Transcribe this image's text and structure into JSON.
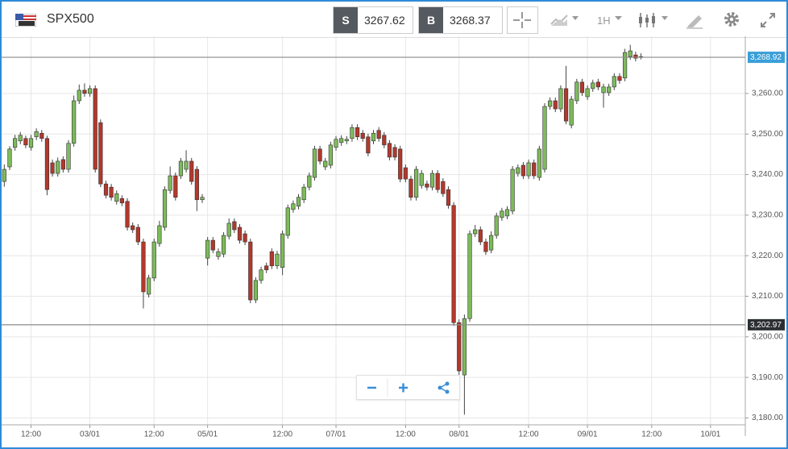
{
  "header": {
    "symbol": "SPX500",
    "sell": {
      "label": "S",
      "price": 3267.62
    },
    "buy": {
      "label": "B",
      "price": 3268.37
    },
    "timeframe": "1H"
  },
  "chart_data": {
    "type": "candlestick",
    "categories": [
      null,
      null,
      null,
      null,
      null,
      "12:00",
      null,
      null,
      null,
      null,
      null,
      null,
      null,
      null,
      null,
      null,
      "03/01",
      null,
      null,
      null,
      null,
      null,
      null,
      null,
      null,
      null,
      null,
      null,
      "12:00",
      null,
      null,
      null,
      null,
      null,
      null,
      null,
      null,
      null,
      "05/01",
      null,
      null,
      null,
      null,
      null,
      null,
      null,
      null,
      null,
      null,
      null,
      null,
      null,
      "12:00",
      null,
      null,
      null,
      null,
      null,
      null,
      null,
      null,
      null,
      "07/01",
      null,
      null,
      null,
      null,
      null,
      null,
      null,
      null,
      null,
      null,
      null,
      null,
      "12:00",
      null,
      null,
      null,
      null,
      null,
      null,
      null,
      null,
      null,
      "08/01",
      null,
      null,
      null,
      null,
      null,
      null,
      null,
      null,
      null,
      null,
      null,
      null,
      "12:00",
      null,
      null,
      null,
      null,
      null,
      null,
      null,
      null,
      null,
      null,
      "09/01",
      null,
      null,
      null,
      null,
      null,
      null,
      null,
      null,
      null,
      null,
      null,
      "12:00",
      null,
      null,
      null,
      null,
      null,
      null,
      null,
      null,
      null,
      null,
      "10/01",
      null,
      null,
      null,
      null,
      null,
      null
    ],
    "open": [
      3238.3,
      3241.9,
      3246.7,
      3248.3,
      3248.9,
      3246.7,
      3249.3,
      3250.2,
      3248.9,
      3242.9,
      3240.3,
      3243.7,
      3241.3,
      3247.7,
      3258.2,
      3260.8,
      3260.0,
      3261.2,
      3252.8,
      3237.7,
      3236.9,
      3233.4,
      3234.1,
      3233.4,
      3227.4,
      3227.0,
      3223.4,
      3210.5,
      3214.5,
      3223.0,
      3227.0,
      3236.1,
      3239.7,
      3239.7,
      3241.3,
      3243.3,
      3241.3,
      3233.8,
      3219.4,
      3223.8,
      3219.8,
      3220.4,
      3224.8,
      3228.4,
      3227.0,
      3225.4,
      3223.4,
      3209.1,
      3213.9,
      3217.5,
      3221.0,
      3217.5,
      3217.1,
      3225.0,
      3231.4,
      3232.2,
      3233.8,
      3236.9,
      3239.3,
      3246.3,
      3241.9,
      3242.3,
      3246.7,
      3247.9,
      3248.3,
      3248.9,
      3251.6,
      3250.2,
      3249.3,
      3248.3,
      3250.9,
      3249.7,
      3247.7,
      3246.7,
      3246.3,
      3241.7,
      3238.9,
      3234.4,
      3237.3,
      3237.7,
      3236.9,
      3240.3,
      3238.3,
      3236.3,
      3232.4,
      3203.5,
      3190.6,
      3204.5,
      3225.4,
      3226.4,
      3223.4,
      3221.4,
      3225.0,
      3229.4,
      3229.8,
      3231.0,
      3240.3,
      3242.3,
      3239.7,
      3242.9,
      3239.3,
      3241.3,
      3256.8,
      3258.2,
      3256.2,
      3261.2,
      3252.2,
      3258.2,
      3262.8,
      3259.2,
      3261.2,
      3262.8,
      3260.2,
      3260.2,
      3261.6,
      3264.2,
      3263.8,
      3269.1,
      3269.5,
      3269.1,
      null,
      null,
      null,
      null,
      null,
      null,
      null,
      null,
      null,
      null,
      null,
      null,
      null,
      null,
      null,
      null,
      null,
      null,
      null
    ],
    "high": [
      3242.5,
      3247.0,
      3249.8,
      3250.5,
      3249.6,
      3249.8,
      3251.4,
      3251.0,
      3249.6,
      3243.7,
      3244.2,
      3244.5,
      3248.5,
      3259.5,
      3262.2,
      3262.5,
      3262.0,
      3262.0,
      3253.6,
      3238.5,
      3237.7,
      3236.1,
      3234.9,
      3234.2,
      3228.2,
      3227.8,
      3224.2,
      3215.3,
      3224.2,
      3228.6,
      3237.1,
      3242.0,
      3240.5,
      3244.1,
      3246.0,
      3244.1,
      3242.1,
      3235.2,
      3224.6,
      3224.6,
      3221.8,
      3225.8,
      3229.2,
      3229.2,
      3227.8,
      3226.2,
      3224.2,
      3214.7,
      3217.3,
      3218.3,
      3221.8,
      3221.2,
      3226.2,
      3232.6,
      3233.6,
      3235.2,
      3237.7,
      3240.5,
      3247.1,
      3247.1,
      3244.1,
      3248.1,
      3249.5,
      3249.7,
      3249.5,
      3252.4,
      3252.4,
      3251.0,
      3250.1,
      3251.0,
      3251.7,
      3250.5,
      3248.5,
      3247.5,
      3247.1,
      3242.5,
      3239.7,
      3242.1,
      3241.1,
      3238.5,
      3241.1,
      3241.1,
      3239.1,
      3237.1,
      3233.2,
      3204.3,
      3205.5,
      3226.2,
      3227.6,
      3227.2,
      3224.2,
      3226.0,
      3230.6,
      3231.8,
      3232.2,
      3242.1,
      3242.5,
      3243.1,
      3243.7,
      3243.7,
      3247.1,
      3257.6,
      3259.0,
      3259.0,
      3262.0,
      3266.8,
      3259.4,
      3263.6,
      3263.6,
      3262.0,
      3263.4,
      3263.6,
      3262.4,
      3262.4,
      3265.0,
      3265.0,
      3271.0,
      3272.0,
      3270.3,
      3269.9,
      null,
      null,
      null,
      null,
      null,
      null,
      null,
      null,
      null,
      null,
      null,
      null,
      null,
      null,
      null,
      null,
      null,
      null,
      null
    ],
    "low": [
      3237.0,
      3241.1,
      3245.9,
      3247.5,
      3246.5,
      3245.9,
      3248.5,
      3248.1,
      3234.9,
      3239.5,
      3239.5,
      3240.5,
      3240.5,
      3246.9,
      3257.4,
      3259.2,
      3259.2,
      3240.5,
      3236.9,
      3234.1,
      3233.6,
      3232.6,
      3232.2,
      3226.2,
      3225.6,
      3222.6,
      3207.0,
      3209.7,
      3213.7,
      3222.2,
      3226.2,
      3235.3,
      3233.6,
      3238.9,
      3240.5,
      3237.5,
      3231.0,
      3233.0,
      3217.6,
      3220.6,
      3219.0,
      3219.6,
      3224.0,
      3225.6,
      3223.0,
      3222.6,
      3208.3,
      3208.3,
      3213.1,
      3215.7,
      3216.7,
      3216.7,
      3215.2,
      3224.2,
      3230.6,
      3231.4,
      3233.0,
      3236.1,
      3238.5,
      3242.5,
      3241.1,
      3241.5,
      3245.9,
      3247.1,
      3247.5,
      3248.1,
      3248.5,
      3248.1,
      3244.5,
      3247.5,
      3248.1,
      3246.5,
      3243.5,
      3243.5,
      3238.1,
      3238.1,
      3233.6,
      3233.6,
      3236.5,
      3236.1,
      3236.1,
      3235.5,
      3234.5,
      3231.6,
      3202.7,
      3189.0,
      3180.8,
      3203.7,
      3224.6,
      3222.6,
      3220.2,
      3220.6,
      3224.2,
      3228.6,
      3229.0,
      3230.2,
      3239.5,
      3238.9,
      3238.9,
      3238.9,
      3238.5,
      3240.5,
      3256.0,
      3255.4,
      3255.4,
      3252.4,
      3251.4,
      3257.4,
      3259.4,
      3258.4,
      3260.4,
      3260.8,
      3256.5,
      3259.4,
      3260.8,
      3262.4,
      3263.0,
      3268.3,
      3267.9,
      3268.4,
      null,
      null,
      null,
      null,
      null,
      null,
      null,
      null,
      null,
      null,
      null,
      null,
      null,
      null,
      null,
      null,
      null,
      null,
      null
    ],
    "close": [
      3241.3,
      3246.3,
      3248.9,
      3249.7,
      3247.3,
      3248.9,
      3250.6,
      3248.9,
      3236.3,
      3240.3,
      3243.3,
      3241.3,
      3247.7,
      3258.2,
      3260.8,
      3260.0,
      3261.2,
      3241.3,
      3237.7,
      3234.9,
      3234.4,
      3235.3,
      3233.0,
      3227.0,
      3226.4,
      3223.4,
      3211.1,
      3214.5,
      3223.4,
      3227.4,
      3236.3,
      3239.7,
      3234.4,
      3243.3,
      3243.3,
      3238.3,
      3233.8,
      3234.4,
      3223.8,
      3221.4,
      3221.0,
      3225.0,
      3228.0,
      3226.4,
      3223.8,
      3223.4,
      3209.1,
      3213.9,
      3216.5,
      3216.5,
      3217.5,
      3220.4,
      3225.4,
      3231.8,
      3232.8,
      3234.4,
      3236.9,
      3239.7,
      3246.3,
      3243.3,
      3243.3,
      3247.3,
      3248.7,
      3248.9,
      3248.7,
      3251.6,
      3249.3,
      3248.9,
      3245.3,
      3250.2,
      3248.9,
      3247.3,
      3244.3,
      3244.3,
      3238.9,
      3238.9,
      3234.4,
      3241.3,
      3240.3,
      3236.9,
      3240.3,
      3236.3,
      3235.3,
      3232.4,
      3203.5,
      3191.6,
      3204.5,
      3225.4,
      3226.4,
      3223.4,
      3221.0,
      3225.0,
      3229.8,
      3231.0,
      3231.4,
      3241.3,
      3241.7,
      3239.7,
      3242.9,
      3239.7,
      3246.3,
      3256.8,
      3258.2,
      3256.2,
      3261.2,
      3253.2,
      3258.6,
      3262.8,
      3260.2,
      3261.2,
      3262.6,
      3261.6,
      3261.6,
      3261.6,
      3264.2,
      3263.2,
      3270.1,
      3270.5,
      3268.7,
      3268.92,
      null,
      null,
      null,
      null,
      null,
      null,
      null,
      null,
      null,
      null,
      null,
      null,
      null,
      null,
      null,
      null,
      null,
      null,
      null
    ],
    "up_color": "#7dba5b",
    "down_color": "#b3382c",
    "ylim": [
      3178.3,
      3274.1
    ],
    "yticks": [
      {
        "value": 3180,
        "label": "3,180.00"
      },
      {
        "value": 3190,
        "label": "3,190.00"
      },
      {
        "value": 3200,
        "label": "3,200.00"
      },
      {
        "value": 3210,
        "label": "3,210.00"
      },
      {
        "value": 3220,
        "label": "3,220.00"
      },
      {
        "value": 3230,
        "label": "3,230.00"
      },
      {
        "value": 3240,
        "label": "3,240.00"
      },
      {
        "value": 3250,
        "label": "3,250.00"
      },
      {
        "value": 3260,
        "label": "3,260.00"
      }
    ],
    "price_lines": [
      {
        "value": 3268.92,
        "label": "3,268.92",
        "color": "#3a9fd8"
      },
      {
        "value": 3202.97,
        "label": "3,202.97",
        "color": "#2b2f33"
      }
    ],
    "grid": true
  }
}
